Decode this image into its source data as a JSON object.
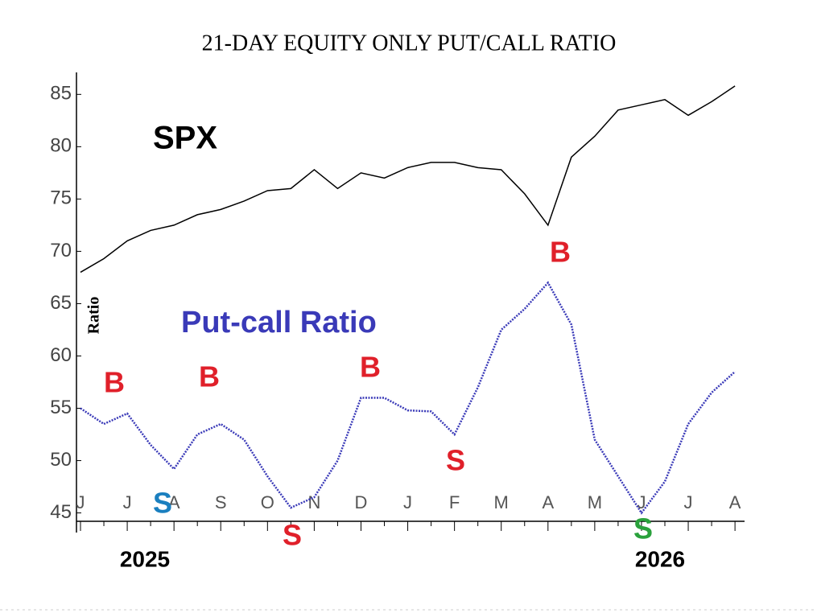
{
  "chart_data": {
    "type": "line",
    "title": "21-DAY EQUITY ONLY PUT/CALL RATIO",
    "y_axis_label": "Ratio",
    "categories": [
      "J",
      null,
      "J",
      null,
      "A",
      null,
      "S",
      null,
      "O",
      null,
      "N",
      null,
      "D",
      null,
      "J",
      null,
      "F",
      null,
      "M",
      null,
      "A",
      null,
      "M",
      null,
      "J",
      null,
      "J",
      null,
      "A"
    ],
    "series": [
      {
        "name": "SPX",
        "color": "#000000",
        "values": [
          68,
          69.3,
          71,
          72,
          72.5,
          73.5,
          74,
          74.8,
          75.8,
          76,
          77.8,
          76,
          77.5,
          77,
          78,
          78.5,
          78.5,
          78,
          77.8,
          75.5,
          72.5,
          79,
          81,
          83.5,
          84,
          84.5,
          83,
          84.3,
          85.8
        ]
      },
      {
        "name": "Put-call Ratio",
        "color": "#3a3ab8",
        "values": [
          55,
          53.5,
          54.5,
          51.5,
          49.2,
          52.5,
          53.5,
          52,
          48.5,
          45.5,
          46.5,
          50,
          56,
          56,
          54.8,
          54.7,
          52.5,
          57,
          62.5,
          64.5,
          67,
          63,
          52,
          48.5,
          45,
          48,
          53.5,
          56.5,
          58.5
        ]
      }
    ],
    "ylim": [
      44.2,
      87.1
    ],
    "yticks": [
      45,
      50,
      55,
      60,
      65,
      70,
      75,
      80,
      85
    ],
    "annotations": [
      {
        "text": "B",
        "color": "#e0202a"
      },
      {
        "text": "B",
        "color": "#e0202a"
      },
      {
        "text": "B",
        "color": "#e0202a"
      },
      {
        "text": "B",
        "color": "#e0202a"
      },
      {
        "text": "S",
        "color": "#1a7fbf"
      },
      {
        "text": "S",
        "color": "#e0202a"
      },
      {
        "text": "S",
        "color": "#e0202a"
      },
      {
        "text": "S",
        "color": "#2aa13c"
      },
      {
        "text": "2025",
        "color": "#000000"
      },
      {
        "text": "2026",
        "color": "#000000"
      }
    ]
  }
}
